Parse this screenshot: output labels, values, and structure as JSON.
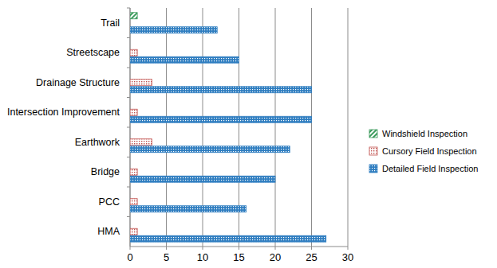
{
  "chart_data": {
    "type": "bar",
    "orientation": "horizontal",
    "categories": [
      "HMA",
      "PCC",
      "Bridge",
      "Earthwork",
      "Intersection Improvement",
      "Drainage Structure",
      "Streetscape",
      "Trail"
    ],
    "series": [
      {
        "name": "Windshield Inspection",
        "color": "#3a9a5b",
        "values": [
          0,
          0,
          0,
          0,
          0,
          0,
          0,
          1
        ]
      },
      {
        "name": "Cursory Field Inspection",
        "color": "#c0504d",
        "values": [
          1,
          1,
          1,
          3,
          1,
          3,
          1,
          0
        ]
      },
      {
        "name": "Detailed Field Inspection",
        "color": "#2e7dc0",
        "values": [
          27,
          16,
          20,
          22,
          25,
          25,
          15,
          12
        ]
      }
    ],
    "xlim": [
      0,
      30
    ],
    "xticks": [
      0,
      5,
      10,
      15,
      20,
      25,
      30
    ],
    "grid": true,
    "legend": "right"
  }
}
